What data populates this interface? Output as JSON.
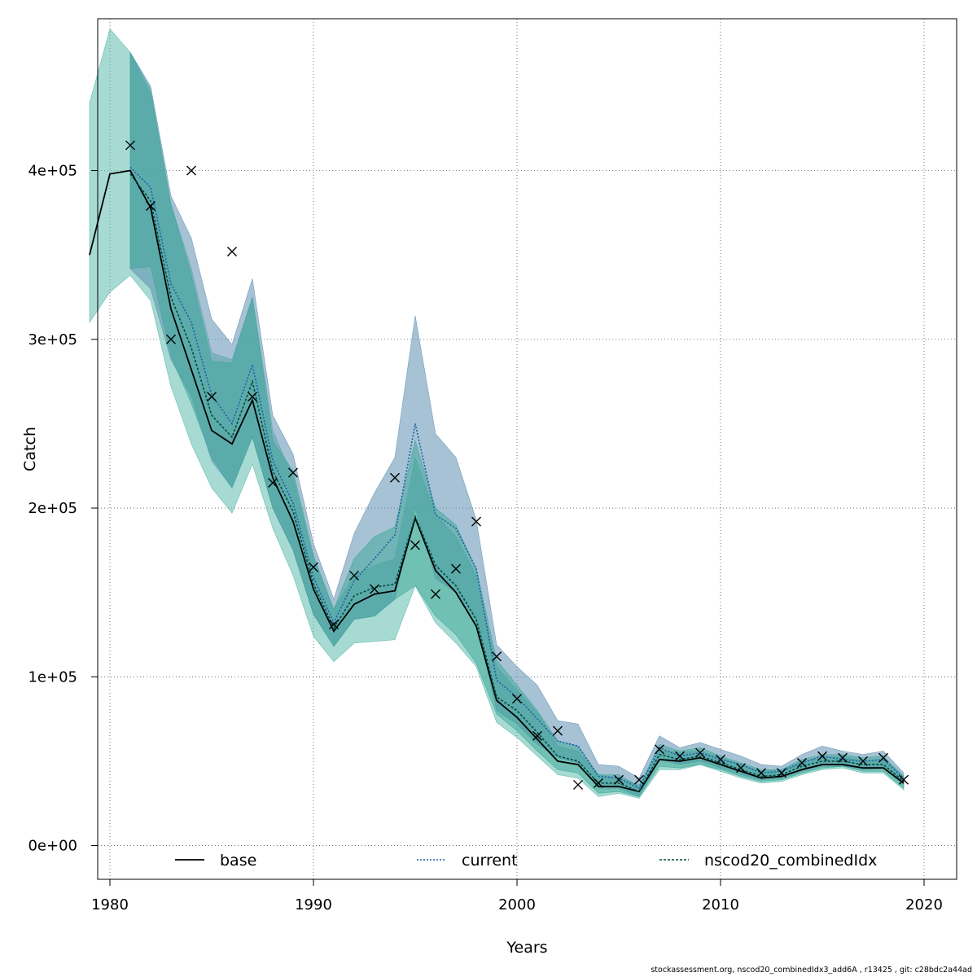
{
  "chart_data": {
    "type": "line",
    "xlabel": "Years",
    "ylabel": "Catch",
    "xlim": [
      1979.4,
      2021.6
    ],
    "ylim": [
      -20000,
      490000
    ],
    "x_ticks": [
      1980,
      1990,
      2000,
      2010,
      2020
    ],
    "y_ticks": [
      {
        "value": 0,
        "label": "0e+00"
      },
      {
        "value": 100000,
        "label": "1e+05"
      },
      {
        "value": 200000,
        "label": "2e+05"
      },
      {
        "value": 300000,
        "label": "3e+05"
      },
      {
        "value": 400000,
        "label": "4e+05"
      }
    ],
    "grid": true,
    "legend_position": "bottom",
    "series": [
      {
        "name": "base",
        "style": "solid",
        "color": "#000000",
        "band_color": "#4db5a5",
        "x": [
          1979,
          1980,
          1981,
          1982,
          1983,
          1984,
          1985,
          1986,
          1987,
          1988,
          1989,
          1990,
          1991,
          1992,
          1993,
          1994,
          1995,
          1996,
          1997,
          1998,
          1999,
          2000,
          2001,
          2002,
          2003,
          2004,
          2005,
          2006,
          2007,
          2008,
          2009,
          2010,
          2011,
          2012,
          2013,
          2014,
          2015,
          2016,
          2017,
          2018,
          2019
        ],
        "values": [
          350000,
          398000,
          400000,
          378000,
          318000,
          282000,
          246000,
          238000,
          264000,
          218000,
          192000,
          152000,
          127000,
          143000,
          149000,
          151000,
          194000,
          163000,
          150000,
          130000,
          86000,
          76000,
          63000,
          50000,
          48000,
          35000,
          35000,
          32000,
          51000,
          50000,
          52000,
          48000,
          44000,
          40000,
          41000,
          45000,
          48000,
          48000,
          46000,
          46000,
          37000
        ],
        "upper": [
          440000,
          484000,
          470000,
          445000,
          380000,
          342000,
          292000,
          288000,
          325000,
          246000,
          218000,
          170000,
          140000,
          160000,
          166000,
          170000,
          230000,
          196000,
          183000,
          160000,
          106000,
          92000,
          79000,
          59000,
          56000,
          42000,
          40000,
          36000,
          56000,
          55000,
          56000,
          52000,
          48000,
          44000,
          45000,
          50000,
          52000,
          53000,
          50000,
          51000,
          41000
        ],
        "lower": [
          310000,
          328000,
          338000,
          323000,
          272000,
          238000,
          212000,
          197000,
          226000,
          188000,
          160000,
          124000,
          109000,
          120000,
          121000,
          122000,
          154000,
          132000,
          120000,
          106000,
          73000,
          64000,
          53000,
          42000,
          40000,
          29000,
          31000,
          28000,
          45000,
          45000,
          48000,
          44000,
          40000,
          37000,
          38000,
          42000,
          45000,
          46000,
          43000,
          43000,
          33000
        ]
      },
      {
        "name": "current",
        "style": "dotted",
        "color": "#1f5fa8",
        "band_color": "#5c90b0",
        "x": [
          1981,
          1982,
          1983,
          1984,
          1985,
          1986,
          1987,
          1988,
          1989,
          1990,
          1991,
          1992,
          1993,
          1994,
          1995,
          1996,
          1997,
          1998,
          1999,
          2000,
          2001,
          2002,
          2003,
          2004,
          2005,
          2006,
          2007,
          2008,
          2009,
          2010,
          2011,
          2012,
          2013,
          2014,
          2015,
          2016,
          2017,
          2018,
          2019
        ],
        "values": [
          402000,
          390000,
          333000,
          310000,
          267000,
          250000,
          285000,
          228000,
          203000,
          159000,
          132000,
          157000,
          170000,
          184000,
          250000,
          196000,
          188000,
          164000,
          98000,
          88000,
          75000,
          62000,
          59000,
          41000,
          40000,
          34000,
          58000,
          53000,
          55000,
          51000,
          48000,
          43000,
          44000,
          49000,
          53000,
          51000,
          50000,
          51000,
          40000
        ],
        "upper": [
          470000,
          450000,
          385000,
          360000,
          312000,
          297000,
          336000,
          255000,
          232000,
          179000,
          146000,
          185000,
          209000,
          230000,
          314000,
          244000,
          230000,
          193000,
          119000,
          106000,
          95000,
          74000,
          72000,
          48000,
          47000,
          40000,
          65000,
          58000,
          61000,
          57000,
          53000,
          48000,
          47000,
          54000,
          59000,
          56000,
          54000,
          56000,
          43000
        ],
        "lower": [
          342000,
          330000,
          288000,
          266000,
          228000,
          212000,
          242000,
          200000,
          175000,
          137000,
          118000,
          134000,
          136000,
          146000,
          200000,
          158000,
          150000,
          132000,
          80000,
          72000,
          60000,
          52000,
          49000,
          34000,
          34000,
          29000,
          51000,
          48000,
          50000,
          46000,
          42000,
          39000,
          40000,
          44000,
          47000,
          47000,
          45000,
          46000,
          36000
        ]
      },
      {
        "name": "nscod20_combinedIdx",
        "style": "dashed",
        "color": "#004d40",
        "band_color": "#3aa596",
        "x": [
          1981,
          1982,
          1983,
          1984,
          1985,
          1986,
          1987,
          1988,
          1989,
          1990,
          1991,
          1992,
          1993,
          1994,
          1995,
          1996,
          1997,
          1998,
          1999,
          2000,
          2001,
          2002,
          2003,
          2004,
          2005,
          2006,
          2007,
          2008,
          2009,
          2010,
          2011,
          2012,
          2013,
          2014,
          2015,
          2016,
          2017,
          2018,
          2019
        ],
        "values": [
          398000,
          382000,
          325000,
          295000,
          255000,
          242000,
          275000,
          222000,
          198000,
          155000,
          129000,
          148000,
          153000,
          155000,
          195000,
          166000,
          154000,
          134000,
          88000,
          80000,
          67000,
          53000,
          50000,
          37000,
          37000,
          32000,
          54000,
          51000,
          53000,
          49000,
          45000,
          41000,
          42000,
          47000,
          50000,
          50000,
          48000,
          48000,
          38000
        ],
        "upper": [
          470000,
          448000,
          380000,
          338000,
          287000,
          286000,
          325000,
          240000,
          222000,
          172000,
          140000,
          170000,
          183000,
          189000,
          240000,
          200000,
          190000,
          164000,
          110000,
          95000,
          80000,
          62000,
          59000,
          42000,
          42000,
          35000,
          60000,
          56000,
          58000,
          53000,
          49000,
          45000,
          45000,
          51000,
          54000,
          54000,
          52000,
          53000,
          41000
        ],
        "lower": [
          342000,
          343000,
          290000,
          262000,
          230000,
          212000,
          242000,
          200000,
          175000,
          137000,
          118000,
          134000,
          136000,
          146000,
          154000,
          136000,
          125000,
          108000,
          78000,
          68000,
          56000,
          45000,
          43000,
          31000,
          32000,
          29000,
          47000,
          46000,
          48000,
          45000,
          41000,
          38000,
          39000,
          43000,
          46000,
          47000,
          44000,
          44000,
          34000
        ]
      }
    ],
    "observed": {
      "marker": "x",
      "x": [
        1981,
        1982,
        1983,
        1984,
        1985,
        1986,
        1987,
        1988,
        1989,
        1990,
        1991,
        1992,
        1993,
        1994,
        1995,
        1996,
        1997,
        1998,
        1999,
        2000,
        2001,
        2002,
        2003,
        2004,
        2005,
        2006,
        2007,
        2008,
        2009,
        2010,
        2011,
        2012,
        2013,
        2014,
        2015,
        2016,
        2017,
        2018,
        2019
      ],
      "values": [
        415000,
        379000,
        300000,
        400000,
        266000,
        352000,
        266000,
        215000,
        221000,
        165000,
        131000,
        160000,
        152000,
        218000,
        178000,
        149000,
        164000,
        192000,
        112000,
        87000,
        65000,
        68000,
        36000,
        37000,
        39000,
        39000,
        57000,
        53000,
        55000,
        51000,
        46000,
        43000,
        43000,
        49000,
        53000,
        52000,
        50000,
        52000,
        39000
      ]
    }
  },
  "footer_text": "stockassessment.org, nscod20_combinedIdx3_add6A , r13425 , git: c28bdc2a44ad"
}
